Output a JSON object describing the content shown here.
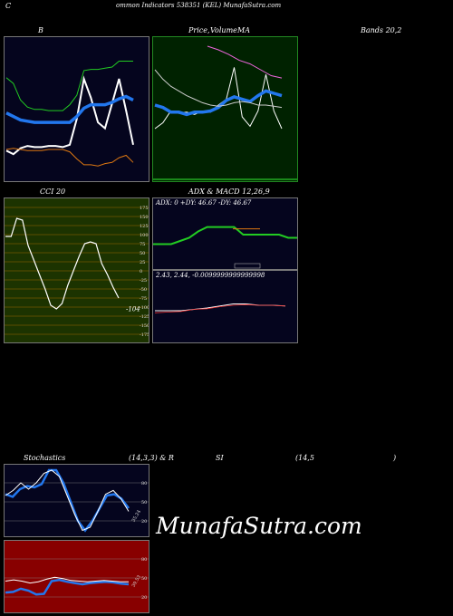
{
  "header": {
    "left": "C",
    "title": "ommon  Indicators 538351 (KEL) MunafaSutra.com"
  },
  "labels": {
    "b": "B",
    "price": "Price,",
    "ma_overlap": "Volume",
    "ma": "MA",
    "bands": "Bands 20,2",
    "cci": "CCI 20",
    "adx_macd": "ADX  & MACD 12,26,9",
    "adx_values": "ADX: 0   +DY: 46.67  -DY: 46.67",
    "macd_values": "2.43,  2.44,  -0.0099999999999998",
    "cci_value": "-104",
    "stoch_title_a": "Stochastics",
    "stoch_title_b": "(14,3,3) & R",
    "stoch_title_c": "SI",
    "stoch_title_d": "(14,5",
    "stoch_title_e": ")",
    "stoch_value": "35.24",
    "rsi_value": "39.53",
    "watermark": "MunafaSutra.com"
  },
  "colors": {
    "navy": "#05051e",
    "green_bg": "#002200",
    "olive_bg": "#1c3300",
    "red_bg": "#880000",
    "white": "#ffffff",
    "blue": "#2277ee",
    "green": "#22cc22",
    "orange": "#dd7711",
    "pink": "#ee66dd"
  },
  "chart_data": [
    {
      "type": "line",
      "panel": "bollinger",
      "series": [
        {
          "color": "#ffffff",
          "values": [
            9,
            6,
            11,
            13,
            12,
            12,
            13,
            13,
            12,
            14,
            36,
            70,
            54,
            33,
            28,
            49,
            70,
            43,
            14
          ]
        },
        {
          "color": "#22cc22",
          "values": [
            71,
            66,
            52,
            46,
            44,
            44,
            43,
            43,
            43,
            48,
            56,
            77,
            78,
            78,
            79,
            80,
            85,
            85,
            85
          ]
        },
        {
          "color": "#dd7711",
          "values": [
            10,
            11,
            10,
            9,
            9,
            9,
            10,
            10,
            10,
            8,
            2,
            -3,
            -3,
            -4,
            -2,
            -1,
            3,
            5,
            -1
          ]
        },
        {
          "color": "#2277ee",
          "values": [
            41,
            38,
            35,
            34,
            33,
            33,
            33,
            33,
            33,
            33,
            38,
            45,
            48,
            48,
            48,
            50,
            53,
            55,
            52
          ]
        }
      ]
    },
    {
      "type": "line",
      "panel": "price_ma",
      "series": [
        {
          "color": "#ffffff",
          "values": [
            0.3,
            0.35,
            0.45,
            0.43,
            0.44,
            0.42,
            0.45,
            0.44,
            0.5,
            0.55,
            0.82,
            0.4,
            0.32,
            0.45,
            0.76,
            0.45,
            0.3
          ]
        },
        {
          "color": "#2277ee",
          "values": [
            0.5,
            0.48,
            0.44,
            0.44,
            0.42,
            0.44,
            0.44,
            0.45,
            0.48,
            0.54,
            0.57,
            0.55,
            0.53,
            0.58,
            0.62,
            0.6,
            0.58
          ]
        },
        {
          "color": "#cccccc",
          "values": [
            0.8,
            0.72,
            0.66,
            0.62,
            0.58,
            0.55,
            0.52,
            0.5,
            0.49,
            0.5,
            0.52,
            0.53,
            0.52,
            0.5,
            0.5,
            0.49,
            0.48
          ]
        },
        {
          "color": "#ee66dd",
          "values": [
            1.0,
            0.97,
            0.93,
            0.88,
            0.85,
            0.8,
            0.75,
            0.73
          ]
        }
      ]
    },
    {
      "type": "line",
      "panel": "cci",
      "yticks": [
        175,
        150,
        125,
        100,
        75,
        50,
        25,
        0,
        -25,
        -50,
        -75,
        -100,
        -125,
        -150,
        -175
      ],
      "ylim": [
        -185,
        185
      ],
      "values": [
        95,
        95,
        145,
        140,
        70,
        30,
        -10,
        -50,
        -95,
        -105,
        -90,
        -40,
        0,
        40,
        75,
        80,
        75,
        20,
        -10,
        -45,
        -75
      ]
    },
    {
      "type": "line",
      "panel": "adx",
      "series": [
        {
          "color": "#22cc22",
          "values": [
            0.35,
            0.35,
            0.35,
            0.4,
            0.45,
            0.55,
            0.62,
            0.62,
            0.62,
            0.62,
            0.5,
            0.5,
            0.5,
            0.5,
            0.5,
            0.45,
            0.45
          ]
        },
        {
          "color": "#dd7711",
          "values": [
            0,
            0,
            0,
            0,
            0,
            0,
            0,
            0,
            0,
            0.62,
            0.62,
            0.62
          ]
        },
        {
          "color": "#cccccc",
          "values": [
            0,
            0,
            0,
            0,
            0,
            0,
            0,
            0,
            0,
            0.05,
            0.05,
            0.05
          ]
        }
      ]
    },
    {
      "type": "line",
      "panel": "macd",
      "series": [
        {
          "color": "#ffffff",
          "values": [
            0.48,
            0.48,
            0.48,
            0.5,
            0.52,
            0.55,
            0.58,
            0.58,
            0.56,
            0.56,
            0.55
          ]
        },
        {
          "color": "#ee3333",
          "values": [
            0.45,
            0.46,
            0.47,
            0.5,
            0.51,
            0.54,
            0.56,
            0.57,
            0.56,
            0.56,
            0.55
          ]
        }
      ]
    },
    {
      "type": "line",
      "panel": "stochastics",
      "yticks": [
        80,
        50,
        20
      ],
      "ylim": [
        0,
        100
      ],
      "series": [
        {
          "color": "#2277ee",
          "values": [
            62,
            58,
            70,
            75,
            73,
            78,
            100,
            100,
            80,
            50,
            20,
            5,
            20,
            40,
            60,
            62,
            55,
            40
          ]
        },
        {
          "color": "#ffffff",
          "values": [
            60,
            68,
            80,
            70,
            80,
            95,
            100,
            90,
            60,
            30,
            5,
            10,
            35,
            62,
            68,
            55,
            35
          ]
        }
      ]
    },
    {
      "type": "line",
      "panel": "rsi",
      "yticks": [
        80,
        50,
        20
      ],
      "ylim": [
        0,
        100
      ],
      "series": [
        {
          "color": "#2277ee",
          "values": [
            27,
            28,
            33,
            30,
            24,
            25,
            45,
            47,
            44,
            42,
            40,
            42,
            43,
            44,
            43,
            41,
            40
          ]
        },
        {
          "color": "#ffffff",
          "values": [
            45,
            47,
            45,
            42,
            44,
            48,
            51,
            49,
            46,
            45,
            44,
            45,
            46,
            45,
            44,
            44
          ]
        }
      ]
    }
  ]
}
